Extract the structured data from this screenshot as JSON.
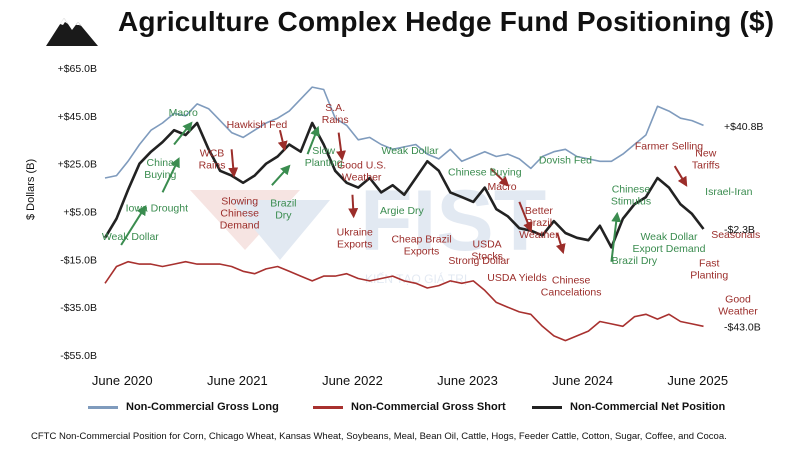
{
  "title": "Agriculture Complex Hedge Fund Positioning ($)",
  "footnote": "CFTC Non-Commercial Position for Corn, Chicago Wheat, Kansas Wheat, Soybeans, Meal, Bean Oil, Cattle, Hogs, Feeder Cattle, Cotton, Sugar, Coffee, and Cocoa.",
  "watermark": {
    "brand": "FIST",
    "tagline": "KIẾN TẠO GIÁ TRỊ"
  },
  "colors": {
    "long": "#7f9bbd",
    "short": "#a8312f",
    "net": "#222222",
    "green": "#3a8c4f",
    "red": "#9b2d2a"
  },
  "chart_data": {
    "type": "line",
    "ylabel": "$ Dollars (B)",
    "ylim": [
      -55,
      65
    ],
    "yticks": [
      {
        "v": 65,
        "label": "+$65.0B"
      },
      {
        "v": 45,
        "label": "+$45.0B"
      },
      {
        "v": 25,
        "label": "+$25.0B"
      },
      {
        "v": 5,
        "label": "+$5.0B"
      },
      {
        "v": -15,
        "label": "-$15.0B"
      },
      {
        "v": -35,
        "label": "-$35.0B"
      },
      {
        "v": -55,
        "label": "-$55.0B"
      }
    ],
    "xlim": [
      2020.3,
      2025.6
    ],
    "xticks": [
      {
        "v": 2020.45,
        "label": "June 2020"
      },
      {
        "v": 2021.45,
        "label": "June 2021"
      },
      {
        "v": 2022.45,
        "label": "June 2022"
      },
      {
        "v": 2023.45,
        "label": "June 2023"
      },
      {
        "v": 2024.45,
        "label": "June 2024"
      },
      {
        "v": 2025.45,
        "label": "June 2025"
      }
    ],
    "series": [
      {
        "name": "Non-Commercial Gross Long",
        "color": "#7f9bbd",
        "x": [
          2020.3,
          2020.4,
          2020.5,
          2020.6,
          2020.7,
          2020.8,
          2020.9,
          2021.0,
          2021.1,
          2021.2,
          2021.3,
          2021.4,
          2021.5,
          2021.6,
          2021.7,
          2021.8,
          2021.9,
          2022.0,
          2022.1,
          2022.2,
          2022.3,
          2022.4,
          2022.5,
          2022.6,
          2022.7,
          2022.8,
          2022.9,
          2023.0,
          2023.1,
          2023.2,
          2023.3,
          2023.4,
          2023.5,
          2023.6,
          2023.7,
          2023.8,
          2023.9,
          2024.0,
          2024.1,
          2024.2,
          2024.3,
          2024.4,
          2024.5,
          2024.6,
          2024.7,
          2024.8,
          2024.9,
          2025.0,
          2025.1,
          2025.2,
          2025.3,
          2025.4,
          2025.5
        ],
        "y": [
          19,
          20,
          26,
          33,
          39,
          42,
          46,
          45,
          50,
          48,
          43,
          38,
          36,
          39,
          42,
          44,
          47,
          52,
          57,
          56,
          44,
          41,
          35,
          36,
          33,
          31,
          32,
          33,
          29,
          27,
          31,
          26,
          28,
          30,
          28,
          29,
          27,
          23,
          28,
          30,
          31,
          28,
          27,
          26,
          26,
          29,
          33,
          37,
          49,
          47,
          44,
          43,
          41
        ]
      },
      {
        "name": "Non-Commercial Gross Short",
        "color": "#a8312f",
        "x": [
          2020.3,
          2020.4,
          2020.5,
          2020.6,
          2020.7,
          2020.8,
          2020.9,
          2021.0,
          2021.1,
          2021.2,
          2021.3,
          2021.4,
          2021.5,
          2021.6,
          2021.7,
          2021.8,
          2021.9,
          2022.0,
          2022.1,
          2022.2,
          2022.3,
          2022.4,
          2022.5,
          2022.6,
          2022.7,
          2022.8,
          2022.9,
          2023.0,
          2023.1,
          2023.2,
          2023.3,
          2023.4,
          2023.5,
          2023.6,
          2023.7,
          2023.8,
          2023.9,
          2024.0,
          2024.1,
          2024.2,
          2024.3,
          2024.4,
          2024.5,
          2024.6,
          2024.7,
          2024.8,
          2024.9,
          2025.0,
          2025.1,
          2025.2,
          2025.3,
          2025.4,
          2025.5
        ],
        "y": [
          -25,
          -18,
          -16,
          -17,
          -17,
          -18,
          -17,
          -16,
          -17,
          -17,
          -17,
          -18,
          -20,
          -21,
          -19,
          -18,
          -20,
          -22,
          -24,
          -22,
          -22,
          -21,
          -23,
          -24,
          -23,
          -22,
          -24,
          -25,
          -27,
          -26,
          -24,
          -25,
          -24,
          -28,
          -33,
          -35,
          -37,
          -38,
          -43,
          -47,
          -49,
          -47,
          -45,
          -41,
          -42,
          -43,
          -39,
          -38,
          -40,
          -38,
          -41,
          -42,
          -43
        ]
      },
      {
        "name": "Non-Commercial Net Position",
        "color": "#222222",
        "x": [
          2020.3,
          2020.4,
          2020.5,
          2020.6,
          2020.7,
          2020.8,
          2020.9,
          2021.0,
          2021.1,
          2021.2,
          2021.3,
          2021.4,
          2021.5,
          2021.6,
          2021.7,
          2021.8,
          2021.9,
          2022.0,
          2022.1,
          2022.2,
          2022.3,
          2022.4,
          2022.5,
          2022.6,
          2022.7,
          2022.8,
          2022.9,
          2023.0,
          2023.1,
          2023.2,
          2023.3,
          2023.4,
          2023.5,
          2023.6,
          2023.7,
          2023.8,
          2023.9,
          2024.0,
          2024.1,
          2024.2,
          2024.3,
          2024.4,
          2024.5,
          2024.6,
          2024.7,
          2024.8,
          2024.9,
          2025.0,
          2025.1,
          2025.2,
          2025.3,
          2025.4,
          2025.5
        ],
        "y": [
          -6,
          2,
          14,
          25,
          30,
          34,
          39,
          37,
          42,
          31,
          22,
          20,
          17,
          20,
          25,
          28,
          33,
          30,
          42,
          33,
          22,
          17,
          15,
          19,
          13,
          16,
          12,
          19,
          26,
          22,
          13,
          11,
          9,
          15,
          6,
          3,
          -2,
          -3,
          -5,
          1,
          -4,
          -6,
          -7,
          -1,
          -10,
          2,
          8,
          11,
          19,
          15,
          8,
          4,
          -2.3
        ]
      }
    ],
    "end_labels": [
      {
        "series": 0,
        "value": 40.8,
        "label": "+$40.8B"
      },
      {
        "series": 2,
        "value": -2.3,
        "label": "-$2.3B"
      },
      {
        "series": 1,
        "value": -43.0,
        "label": "-$43.0B"
      }
    ],
    "annotations": [
      {
        "text": "Weak Dollar",
        "color": "green",
        "x": 2020.52,
        "y": -7
      },
      {
        "text": "Iowa Drought",
        "color": "green",
        "x": 2020.75,
        "y": 5
      },
      {
        "text": "China\nBuying",
        "color": "green",
        "x": 2020.78,
        "y": 24
      },
      {
        "text": "Macro",
        "color": "green",
        "x": 2020.98,
        "y": 45
      },
      {
        "text": "WCB\nRains",
        "color": "red",
        "x": 2021.23,
        "y": 28
      },
      {
        "text": "Slowing\nChinese\nDemand",
        "color": "red",
        "x": 2021.47,
        "y": 8
      },
      {
        "text": "Hawkish Fed",
        "color": "red",
        "x": 2021.62,
        "y": 40
      },
      {
        "text": "Brazil\nDry",
        "color": "green",
        "x": 2021.85,
        "y": 7
      },
      {
        "text": "Slow\nPlanting",
        "color": "green",
        "x": 2022.2,
        "y": 29
      },
      {
        "text": "S.A.\nRains",
        "color": "red",
        "x": 2022.3,
        "y": 47
      },
      {
        "text": "Good U.S.\nWeather",
        "color": "red",
        "x": 2022.53,
        "y": 23
      },
      {
        "text": "Ukraine\nExports",
        "color": "red",
        "x": 2022.47,
        "y": -5
      },
      {
        "text": "Weak Dollar",
        "color": "green",
        "x": 2022.95,
        "y": 29
      },
      {
        "text": "Argie Dry",
        "color": "green",
        "x": 2022.88,
        "y": 4
      },
      {
        "text": "Cheap Brazil\nExports",
        "color": "red",
        "x": 2023.05,
        "y": -8
      },
      {
        "text": "Chinese Buying",
        "color": "green",
        "x": 2023.6,
        "y": 20
      },
      {
        "text": "Macro",
        "color": "red",
        "x": 2023.75,
        "y": 14
      },
      {
        "text": "USDA\nStocks",
        "color": "red",
        "x": 2023.62,
        "y": -10
      },
      {
        "text": "Strong Dollar",
        "color": "red",
        "x": 2023.55,
        "y": -17
      },
      {
        "text": "USDA Yields",
        "color": "red",
        "x": 2023.88,
        "y": -24
      },
      {
        "text": "Better\nBrazil\nWeather",
        "color": "red",
        "x": 2024.07,
        "y": 4
      },
      {
        "text": "Dovish Fed",
        "color": "green",
        "x": 2024.3,
        "y": 25
      },
      {
        "text": "Chinese\nCancelations",
        "color": "red",
        "x": 2024.35,
        "y": -25
      },
      {
        "text": "Chinese\nStimulus",
        "color": "green",
        "x": 2024.87,
        "y": 13
      },
      {
        "text": "Farmer Selling",
        "color": "red",
        "x": 2025.2,
        "y": 31
      },
      {
        "text": "Weak Dollar",
        "color": "green",
        "x": 2025.2,
        "y": -7
      },
      {
        "text": "Export Demand",
        "color": "green",
        "x": 2025.2,
        "y": -12
      },
      {
        "text": "Brazil Dry",
        "color": "green",
        "x": 2024.9,
        "y": -17
      },
      {
        "text": "New\nTariffs",
        "color": "red",
        "x": 2025.52,
        "y": 28
      },
      {
        "text": "Israel-Iran",
        "color": "green",
        "x": 2025.72,
        "y": 12
      },
      {
        "text": "Seasonals",
        "color": "red",
        "x": 2025.78,
        "y": -6
      },
      {
        "text": "Fast\nPlanting",
        "color": "red",
        "x": 2025.55,
        "y": -18
      },
      {
        "text": "Good\nWeather",
        "color": "red",
        "x": 2025.8,
        "y": -33
      }
    ],
    "arrows": [
      {
        "color": "green",
        "x1": 2020.44,
        "y1": -9,
        "x2": 2020.65,
        "y2": 7
      },
      {
        "color": "green",
        "x1": 2020.8,
        "y1": 13,
        "x2": 2020.94,
        "y2": 27
      },
      {
        "color": "green",
        "x1": 2020.9,
        "y1": 33,
        "x2": 2021.05,
        "y2": 42
      },
      {
        "color": "red",
        "x1": 2021.4,
        "y1": 31,
        "x2": 2021.42,
        "y2": 20
      },
      {
        "color": "red",
        "x1": 2021.82,
        "y1": 39,
        "x2": 2021.86,
        "y2": 31
      },
      {
        "color": "green",
        "x1": 2021.75,
        "y1": 16,
        "x2": 2021.9,
        "y2": 24
      },
      {
        "color": "green",
        "x1": 2022.06,
        "y1": 29,
        "x2": 2022.15,
        "y2": 40
      },
      {
        "color": "red",
        "x1": 2022.33,
        "y1": 38,
        "x2": 2022.36,
        "y2": 27
      },
      {
        "color": "red",
        "x1": 2022.45,
        "y1": 12,
        "x2": 2022.46,
        "y2": 3
      },
      {
        "color": "red",
        "x1": 2023.65,
        "y1": 23,
        "x2": 2023.8,
        "y2": 16
      },
      {
        "color": "red",
        "x1": 2023.9,
        "y1": 9,
        "x2": 2024.0,
        "y2": -3
      },
      {
        "color": "red",
        "x1": 2024.23,
        "y1": -4,
        "x2": 2024.28,
        "y2": -12
      },
      {
        "color": "green",
        "x1": 2024.7,
        "y1": -16,
        "x2": 2024.75,
        "y2": 4
      },
      {
        "color": "red",
        "x1": 2025.25,
        "y1": 24,
        "x2": 2025.35,
        "y2": 16
      }
    ]
  },
  "legend": [
    {
      "label": "Non-Commercial Gross Long",
      "color": "#7f9bbd"
    },
    {
      "label": "Non-Commercial Gross Short",
      "color": "#a8312f"
    },
    {
      "label": "Non-Commercial Net Position",
      "color": "#222222"
    }
  ]
}
